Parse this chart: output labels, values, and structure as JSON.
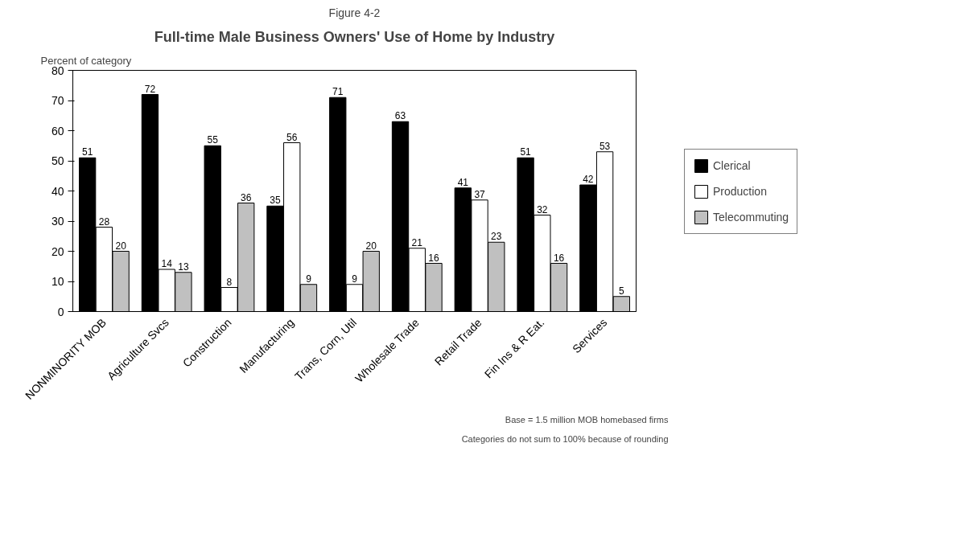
{
  "chart_data": {
    "type": "bar",
    "title": "Full-time Male Business Owners' Use of Home by Industry",
    "subtitle": "Figure 4-2",
    "ylabel": "Percent of category",
    "categories": [
      "NONMINORITY MOB",
      "Agriculture Svcs",
      "Construction",
      "Manufacturing",
      "Trans, Corn, Util",
      "Wholesale Trade",
      "Retail Trade",
      "Fin Ins & R Eat.",
      "Services"
    ],
    "series": [
      {
        "name": "Clerical",
        "color": "#000000",
        "values": [
          51,
          72,
          55,
          35,
          71,
          63,
          41,
          51,
          42
        ]
      },
      {
        "name": "Production",
        "color": "#ffffff",
        "values": [
          28,
          14,
          8,
          56,
          9,
          21,
          37,
          32,
          53
        ]
      },
      {
        "name": "Telecommuting",
        "color": "#c0c0c0",
        "values": [
          20,
          13,
          36,
          9,
          20,
          16,
          23,
          16,
          5
        ]
      }
    ],
    "ylim": [
      0,
      80
    ],
    "yticks": [
      0,
      10,
      20,
      30,
      40,
      50,
      60,
      70,
      80
    ],
    "data_labels": true,
    "grid": false,
    "legend": "right",
    "annotations": [
      "Base = 1.5 million MOB homebased firms",
      "Categories do not sum to 100% because of rounding"
    ]
  }
}
